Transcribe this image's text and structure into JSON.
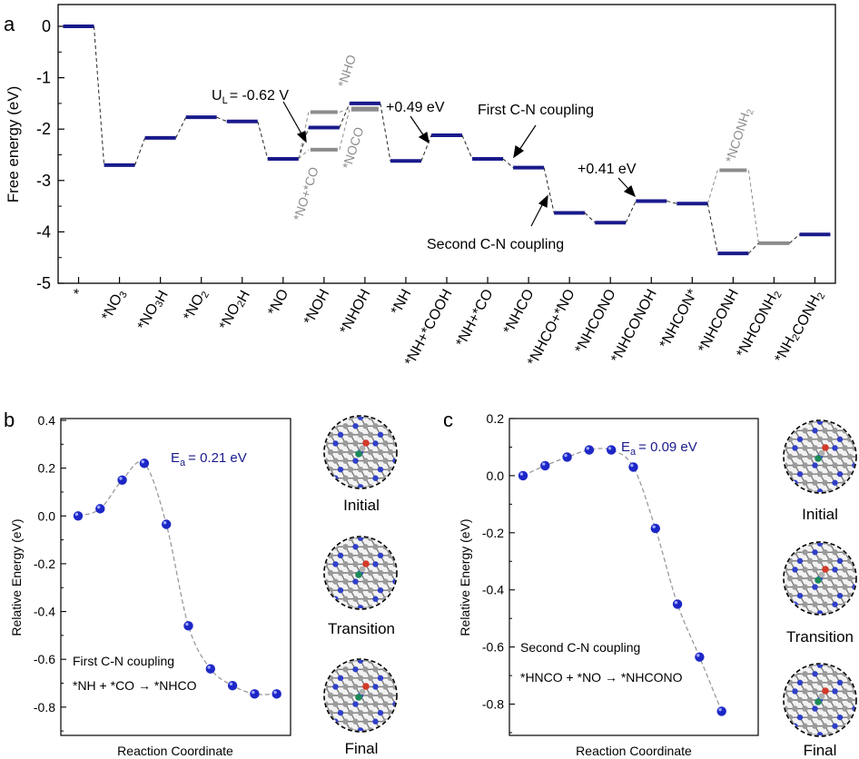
{
  "colors": {
    "path": "#1a1a8c",
    "alt": "#8c8c8c",
    "ball": "#1d27c6",
    "axis": "#000000",
    "annot": "#1a1a8c"
  },
  "chart_data": [
    {
      "panel": "a",
      "type": "energy_diagram",
      "ylabel": "Free energy (eV)",
      "ylim": [
        -5,
        0.2
      ],
      "yticks": [
        "0",
        "-1",
        "-2",
        "-3",
        "-4",
        "-5"
      ],
      "categories": [
        "*",
        "*NO3",
        "*NO3H",
        "*NO2",
        "*NO2H",
        "*NO",
        "*NOH",
        "*NHOH",
        "*NH",
        "*NH+*COOH",
        "*NH+*CO",
        "*NHCO",
        "*NHCO+*NO",
        "*NHCONO",
        "*NHCONOH",
        "*NHCON*",
        "*NHCONH",
        "*NHCONH2",
        "*NH2CONH2"
      ],
      "main_path": [
        0.0,
        -2.7,
        -2.17,
        -1.77,
        -1.85,
        -2.58,
        -1.97,
        -1.5,
        -2.62,
        -2.12,
        -2.58,
        -2.75,
        -3.63,
        -3.82,
        -3.4,
        -3.45,
        -4.42,
        -4.22,
        -4.05
      ],
      "branch_nho": [
        {
          "x": 6,
          "y": -1.67,
          "label": "*NHO"
        },
        {
          "x": 7,
          "y": -1.6
        }
      ],
      "branch_noco": [
        {
          "x": 6,
          "y": -2.4,
          "label": "*NO+*CO"
        },
        {
          "x": 7,
          "y": -1.62,
          "label": "*NOCO"
        }
      ],
      "branch_nconh2": {
        "x": 16,
        "y": -2.8,
        "label": "*NCONH2"
      },
      "annotations": {
        "ul": "U",
        "ul_sub": "L",
        "ul_val": "= -0.62 V",
        "step049": "+0.49 eV",
        "step041": "+0.41 eV",
        "first_coupling": "First C-N coupling",
        "second_coupling": "Second C-N coupling"
      }
    },
    {
      "panel": "b",
      "type": "scatter",
      "ylabel": "Relative Energy (eV)",
      "xlabel": "Reaction Coordinate",
      "ylim": [
        -0.85,
        0.4
      ],
      "yticks": [
        "0.4",
        "0.2",
        "0.0",
        "-0.2",
        "-0.4",
        "-0.6",
        "-0.8"
      ],
      "values": [
        0.0,
        0.03,
        0.15,
        0.22,
        -0.035,
        -0.46,
        -0.64,
        -0.71,
        -0.745,
        -0.745
      ],
      "ea_label": "E",
      "ea_sub": "a",
      "ea_value": "= 0.21 eV",
      "note1": "First C-N coupling",
      "note2": "*NH + *CO → *NHCO",
      "structures": [
        "Initial",
        "Transition",
        "Final"
      ]
    },
    {
      "panel": "c",
      "type": "scatter",
      "ylabel": "Relative Energy (eV)",
      "xlabel": "Reaction Coordinate",
      "ylim": [
        -0.9,
        0.2
      ],
      "yticks": [
        "0.2",
        "0.0",
        "-0.2",
        "-0.4",
        "-0.6",
        "-0.8"
      ],
      "values": [
        0.0,
        0.035,
        0.065,
        0.09,
        0.09,
        0.03,
        -0.185,
        -0.45,
        -0.635,
        -0.825
      ],
      "ea_label": "E",
      "ea_sub": "a",
      "ea_value": "= 0.09 eV",
      "note1": "Second C-N coupling",
      "note2": "*HNCO + *NO → *NHCONO",
      "structures": [
        "Initial",
        "Transition",
        "Final"
      ]
    }
  ],
  "panel_labels": [
    "a",
    "b",
    "c"
  ]
}
